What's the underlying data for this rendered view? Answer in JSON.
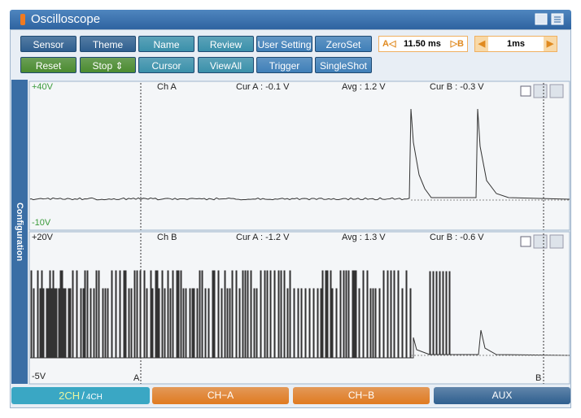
{
  "window": {
    "title": "Oscilloscope"
  },
  "buttons": [
    [
      "Sensor",
      "Theme",
      "Name",
      "Review",
      "User Setting",
      "ZeroSet"
    ],
    [
      "Reset",
      "Stop ⇕",
      "Cursor",
      "ViewAll",
      "Trigger",
      "SingleShot"
    ]
  ],
  "cursor_readout": {
    "a_label": "A◁",
    "delta": "11.50 ms",
    "b_label": "▷B"
  },
  "timebase": {
    "value": "1ms"
  },
  "side_tab": "Configuration",
  "panels": [
    {
      "top_label": "+40V",
      "channel": "Ch A",
      "cur_a": "Cur A : -0.1 V",
      "avg": "Avg : 1.2 V",
      "cur_b": "Cur B : -0.3 V",
      "bottom_label": "-10V"
    },
    {
      "top_label": "+20V",
      "channel": "Ch B",
      "cur_a": "Cur A : -1.2 V",
      "avg": "Avg : 1.3 V",
      "cur_b": "Cur B : -0.6 V",
      "bottom_label": "-5V",
      "cursor_a": "A",
      "cursor_b": "B"
    }
  ],
  "tabs": {
    "channels_current": "2CH",
    "channels_sep": "/",
    "channels_other": "4CH",
    "items": [
      "CH−A",
      "CH−B",
      "AUX"
    ]
  }
}
